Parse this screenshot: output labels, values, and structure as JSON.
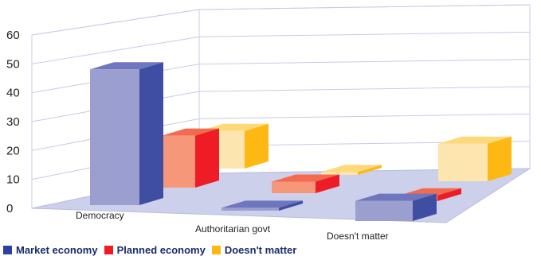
{
  "chart_data": {
    "type": "bar",
    "categories": [
      "Democracy",
      "Authoritarian govt",
      "Doesn't matter"
    ],
    "series": [
      {
        "name": "Market economy",
        "values": [
          47,
          1,
          7
        ]
      },
      {
        "name": "Planned economy",
        "values": [
          18,
          4,
          2
        ]
      },
      {
        "name": "Doesn't matter",
        "values": [
          13,
          1,
          13
        ]
      }
    ],
    "yticks": [
      "0",
      "10",
      "20",
      "30",
      "40",
      "50",
      "60"
    ],
    "ylim": [
      0,
      60
    ],
    "grid": true,
    "legend_position": "bottom-left",
    "three_d": true,
    "colors": {
      "Market economy": {
        "front": "#9a9fcf",
        "side": "#3f4ea3",
        "top": "#6e77bd",
        "legend": "#2e3f9c"
      },
      "Planned economy": {
        "front": "#f7977a",
        "side": "#ee1c25",
        "top": "#f26b4f",
        "legend": "#ee1c25"
      },
      "Doesn't matter": {
        "front": "#fde5b0",
        "side": "#fdb813",
        "top": "#fed97a",
        "legend": "#fdb813"
      }
    }
  }
}
